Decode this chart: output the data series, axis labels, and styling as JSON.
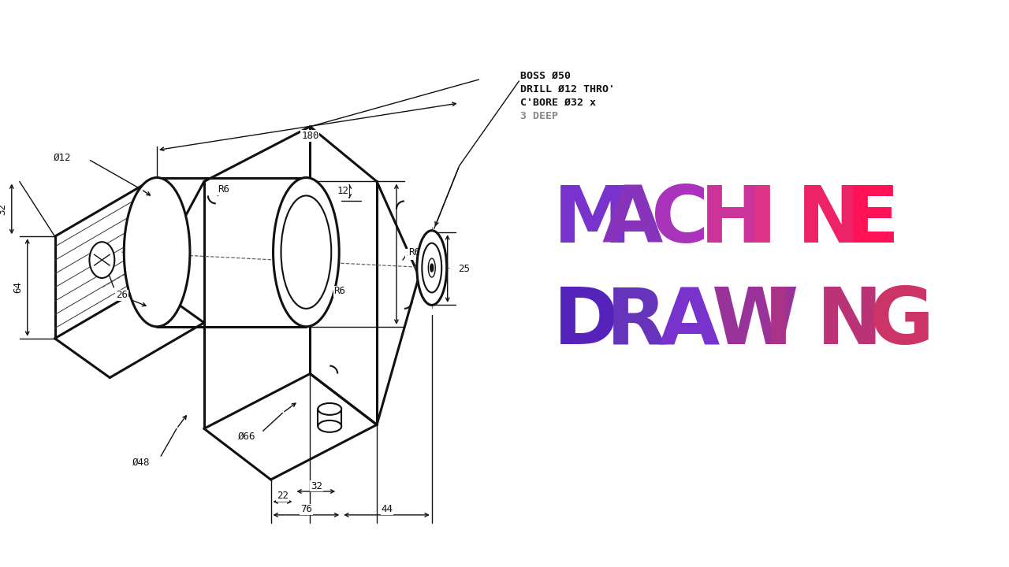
{
  "bg_color": "#ffffff",
  "drawing_color": "#111111",
  "title_line1": "MACHINE",
  "title_line2": "DRAWING",
  "note_lines": [
    "BOSS Ø50",
    "DRILL Ø12 THRO'",
    "C'BORE Ø32 x",
    "3 DEEP"
  ],
  "machine_chars": [
    "M",
    "A",
    "C",
    "H",
    "I",
    "N",
    "E"
  ],
  "drawing_chars": [
    "D",
    "R",
    "A",
    "W",
    "I",
    "N",
    "G"
  ],
  "machine_colors": [
    "#7733cc",
    "#8833bb",
    "#aa33bb",
    "#cc3399",
    "#dd3388",
    "#ee2266",
    "#ff1155"
  ],
  "drawing_colors": [
    "#5522bb",
    "#6633bb",
    "#7733cc",
    "#993399",
    "#aa3388",
    "#bb3377",
    "#cc3366"
  ]
}
